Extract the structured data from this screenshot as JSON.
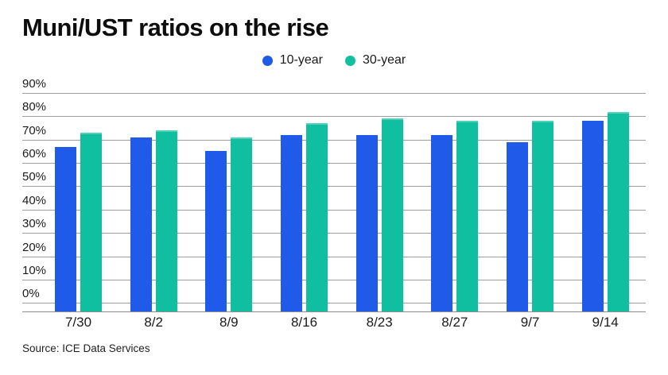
{
  "title": "Muni/UST ratios on the rise",
  "source": "Source: ICE Data Services",
  "colors": {
    "series_10_year": "#1f5ae8",
    "series_30_year": "#10bf9f",
    "gridline": "#9e9e9e",
    "axis": "#8d8d8d",
    "text": "#1b1b1b",
    "title_text": "#0d0d0d",
    "background": "#ffffff"
  },
  "chart_data": {
    "type": "bar",
    "title": "Muni/UST ratios on the rise",
    "categories": [
      "7/30",
      "8/2",
      "8/9",
      "8/16",
      "8/23",
      "8/27",
      "9/7",
      "9/14"
    ],
    "series": [
      {
        "name": "10-year",
        "color": "#1f5ae8",
        "values": [
          67,
          71,
          65,
          72,
          72,
          72,
          69,
          78
        ]
      },
      {
        "name": "30-year",
        "color": "#10bf9f",
        "values": [
          73,
          74,
          71,
          77,
          79,
          78,
          78,
          82
        ]
      }
    ],
    "xlabel": "",
    "ylabel": "",
    "ylim": [
      0,
      90
    ],
    "ytick_step": 10,
    "ytick_suffix": "%",
    "grid": true,
    "legend_position": "top-center",
    "source": "Source: ICE Data Services"
  }
}
